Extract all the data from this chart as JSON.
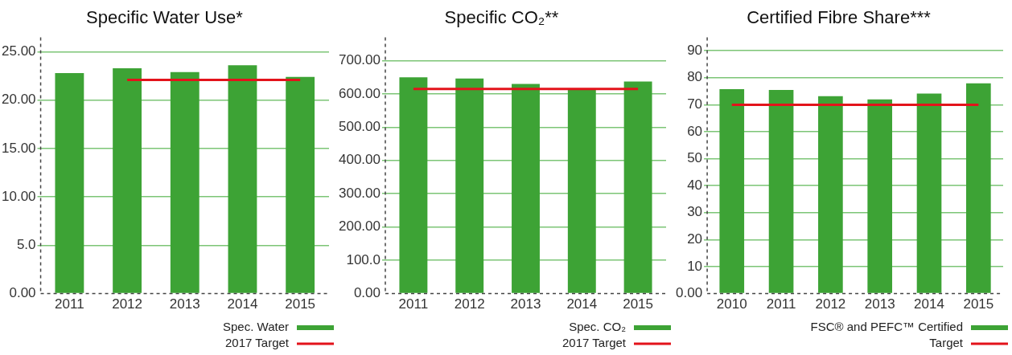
{
  "chart_data": [
    {
      "type": "bar",
      "title": "Specific Water Use*",
      "categories": [
        "2011",
        "2012",
        "2013",
        "2014",
        "2015"
      ],
      "series": [
        {
          "name": "Spec. Water",
          "color": "#3da335",
          "values": [
            22.8,
            23.3,
            22.9,
            23.6,
            22.4
          ]
        },
        {
          "name": "2017 Target",
          "color": "#e3131b",
          "type": "line",
          "values": [
            null,
            22.1,
            22.1,
            22.1,
            22.1
          ]
        }
      ],
      "ylim": [
        0,
        26.5
      ],
      "yticks": [
        {
          "value": 0,
          "label": "0.00"
        },
        {
          "value": 5,
          "label": "5.0"
        },
        {
          "value": 10,
          "label": "10.00"
        },
        {
          "value": 15,
          "label": "15.00"
        },
        {
          "value": 20,
          "label": "20.00"
        },
        {
          "value": 25,
          "label": "25.00"
        }
      ],
      "grid": "y",
      "legend": "bottom right"
    },
    {
      "type": "bar",
      "title": "Specific CO₂**",
      "categories": [
        "2011",
        "2012",
        "2013",
        "2014",
        "2015"
      ],
      "series": [
        {
          "name": "Spec. CO₂",
          "color": "#3da335",
          "values": [
            650,
            646,
            630,
            615,
            637
          ]
        },
        {
          "name": "2017 Target",
          "color": "#e3131b",
          "type": "line",
          "values": [
            615,
            615,
            615,
            615,
            615
          ]
        }
      ],
      "ylim": [
        0,
        770
      ],
      "yticks": [
        {
          "value": 0,
          "label": "0.00"
        },
        {
          "value": 100,
          "label": "100.0"
        },
        {
          "value": 200,
          "label": "200.00"
        },
        {
          "value": 300,
          "label": "300.00"
        },
        {
          "value": 400,
          "label": "400.00"
        },
        {
          "value": 500,
          "label": "500.00"
        },
        {
          "value": 600,
          "label": "600.00"
        },
        {
          "value": 700,
          "label": "700.00"
        }
      ],
      "grid": "y",
      "legend": "bottom right"
    },
    {
      "type": "bar",
      "title": "Certified Fibre Share***",
      "categories": [
        "2010",
        "2011",
        "2012",
        "2013",
        "2014",
        "2015"
      ],
      "series": [
        {
          "name": "FSC® and PEFC™ Certified",
          "color": "#3da335",
          "values": [
            75.8,
            75.5,
            73.2,
            72.0,
            74.1,
            77.9
          ]
        },
        {
          "name": "Target",
          "color": "#e3131b",
          "type": "line",
          "values": [
            70,
            70,
            70,
            70,
            70,
            70
          ]
        }
      ],
      "ylim": [
        0,
        95
      ],
      "yticks": [
        {
          "value": 0,
          "label": "0.00"
        },
        10,
        20,
        30,
        40,
        50,
        60,
        70,
        80,
        90
      ],
      "grid": "y",
      "legend": "bottom right"
    }
  ]
}
